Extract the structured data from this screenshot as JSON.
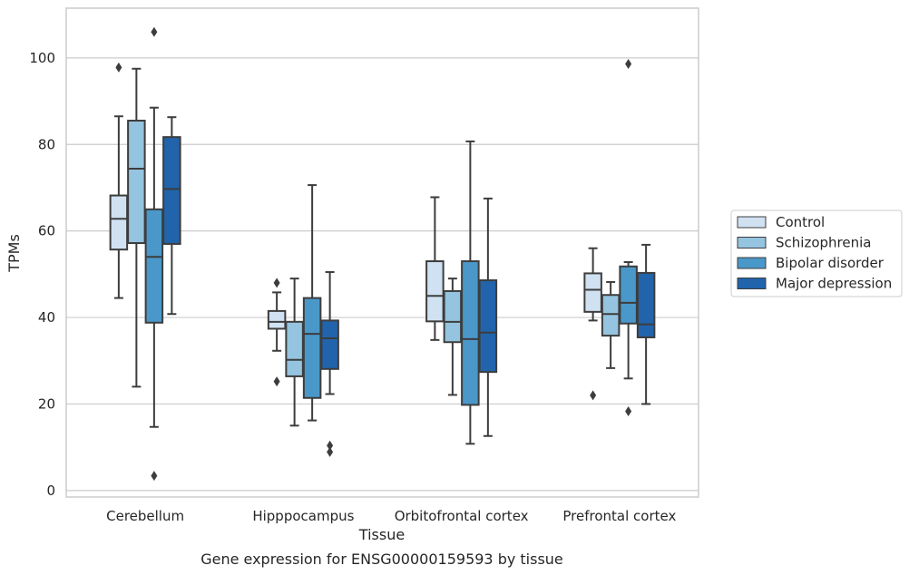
{
  "chart_data": {
    "type": "boxplot",
    "title": "Gene expression for ENSG00000159593 by tissue",
    "xlabel": "Tissue",
    "ylabel": "TPMs",
    "ylim": [
      -1.5,
      111.5
    ],
    "yticks": [
      0,
      20,
      40,
      60,
      80,
      100
    ],
    "grid": "horizontal",
    "legend_position": "right",
    "categories": [
      "Cerebellum",
      "Hipppocampus",
      "Orbitofrontal cortex",
      "Prefrontal cortex"
    ],
    "series": [
      {
        "name": "Control",
        "color": "#d0e1f2",
        "boxes": [
          {
            "whisker_low": 44.5,
            "q1": 55.7,
            "median": 62.8,
            "q3": 68.2,
            "whisker_high": 86.5,
            "outliers": [
              97.8
            ]
          },
          {
            "whisker_low": 32.3,
            "q1": 37.4,
            "median": 39.0,
            "q3": 41.5,
            "whisker_high": 45.8,
            "outliers": [
              48.0,
              25.2
            ]
          },
          {
            "whisker_low": 34.8,
            "q1": 39.1,
            "median": 45.0,
            "q3": 53.0,
            "whisker_high": 67.8,
            "outliers": []
          },
          {
            "whisker_low": 39.3,
            "q1": 41.3,
            "median": 46.4,
            "q3": 50.2,
            "whisker_high": 56.0,
            "outliers": [
              22.0
            ]
          }
        ]
      },
      {
        "name": "Schizophrenia",
        "color": "#94c4df",
        "boxes": [
          {
            "whisker_low": 24.0,
            "q1": 57.2,
            "median": 74.4,
            "q3": 85.5,
            "whisker_high": 97.5,
            "outliers": []
          },
          {
            "whisker_low": 15.0,
            "q1": 26.4,
            "median": 30.2,
            "q3": 39.0,
            "whisker_high": 49.0,
            "outliers": []
          },
          {
            "whisker_low": 22.1,
            "q1": 34.3,
            "median": 39.0,
            "q3": 46.1,
            "whisker_high": 49.0,
            "outliers": []
          },
          {
            "whisker_low": 28.3,
            "q1": 35.8,
            "median": 40.8,
            "q3": 45.2,
            "whisker_high": 48.2,
            "outliers": []
          }
        ]
      },
      {
        "name": "Bipolar disorder",
        "color": "#4a98c9",
        "boxes": [
          {
            "whisker_low": 14.7,
            "q1": 38.8,
            "median": 54.0,
            "q3": 65.0,
            "whisker_high": 88.5,
            "outliers": [
              106.0,
              3.4
            ]
          },
          {
            "whisker_low": 16.2,
            "q1": 21.4,
            "median": 36.2,
            "q3": 44.5,
            "whisker_high": 70.6,
            "outliers": []
          },
          {
            "whisker_low": 10.8,
            "q1": 19.8,
            "median": 35.0,
            "q3": 53.0,
            "whisker_high": 80.7,
            "outliers": []
          },
          {
            "whisker_low": 25.9,
            "q1": 38.6,
            "median": 43.4,
            "q3": 51.8,
            "whisker_high": 52.8,
            "outliers": [
              98.6,
              18.3
            ]
          }
        ]
      },
      {
        "name": "Major depression",
        "color": "#2164ab",
        "boxes": [
          {
            "whisker_low": 40.8,
            "q1": 57.0,
            "median": 69.7,
            "q3": 81.7,
            "whisker_high": 86.3,
            "outliers": []
          },
          {
            "whisker_low": 22.3,
            "q1": 28.1,
            "median": 35.2,
            "q3": 39.3,
            "whisker_high": 50.5,
            "outliers": [
              10.4,
              8.9
            ]
          },
          {
            "whisker_low": 12.6,
            "q1": 27.4,
            "median": 36.5,
            "q3": 48.6,
            "whisker_high": 67.5,
            "outliers": []
          },
          {
            "whisker_low": 20.0,
            "q1": 35.4,
            "median": 38.4,
            "q3": 50.3,
            "whisker_high": 56.8,
            "outliers": []
          }
        ]
      }
    ]
  }
}
